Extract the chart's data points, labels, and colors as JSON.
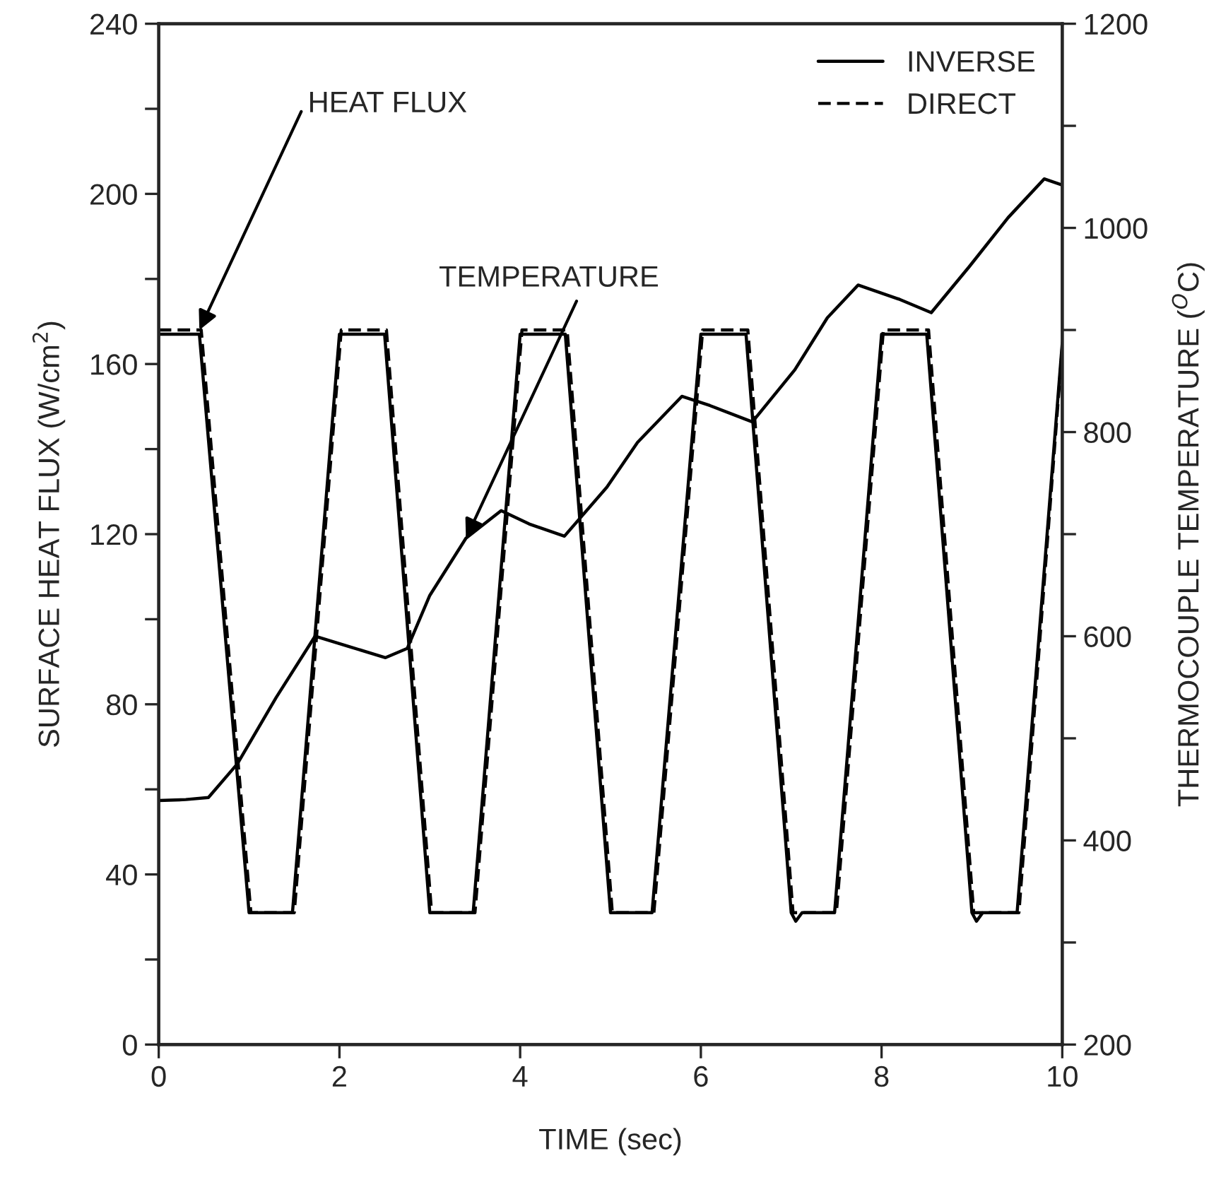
{
  "chart_data": {
    "type": "line",
    "xlabel": "TIME (sec)",
    "ylabel": "SURFACE HEAT FLUX (W/cm$^{2}$)",
    "y2label": "THERMOCOUPLE TEMPERATURE ($^{O}$C)",
    "xlim": [
      0,
      10
    ],
    "xticks": [
      0,
      2,
      4,
      6,
      8,
      10
    ],
    "ylim": [
      0,
      240
    ],
    "yticks": [
      0,
      {
        "value": 20,
        "label": null
      },
      40,
      {
        "value": 60,
        "label": null
      },
      80,
      {
        "value": 100,
        "label": null
      },
      120,
      {
        "value": 140,
        "label": null
      },
      160,
      {
        "value": 180,
        "label": null
      },
      200,
      {
        "value": 220,
        "label": null
      },
      240
    ],
    "y2lim": [
      200,
      1200
    ],
    "y2ticks": [
      200,
      {
        "value": 300,
        "label": null
      },
      400,
      {
        "value": 500,
        "label": null
      },
      600,
      {
        "value": 700,
        "label": null
      },
      800,
      {
        "value": 900,
        "label": null
      },
      1000,
      {
        "value": 1100,
        "label": null
      },
      1200
    ],
    "legend": "top right",
    "grid": false,
    "marker": "none",
    "series": [
      {
        "name": "INVERSE",
        "color": "#000000",
        "line_style": "solid",
        "x": [
          0,
          0.45,
          1.0,
          1.48,
          2.0,
          2.5,
          3.0,
          3.48,
          4.0,
          4.5,
          5.0,
          5.46,
          6.0,
          6.5,
          7.0,
          7.05,
          7.12,
          7.48,
          8.0,
          8.5,
          9.0,
          9.05,
          9.12,
          9.5,
          10
        ],
        "values": [
          167,
          167,
          31,
          31,
          167,
          167,
          31,
          31,
          167,
          167,
          31,
          31,
          167,
          167,
          31,
          29,
          31,
          31,
          167,
          167,
          31,
          29,
          31,
          31,
          165
        ]
      },
      {
        "name": "DIRECT",
        "color": "#000000",
        "line_style": "dashed",
        "x": [
          0,
          0.47,
          1.02,
          1.5,
          2.02,
          2.52,
          3.02,
          3.5,
          4.02,
          4.52,
          5.02,
          5.48,
          6.02,
          6.52,
          7.02,
          7.5,
          8.02,
          8.52,
          9.02,
          9.52,
          10
        ],
        "values": [
          168,
          168,
          31,
          31,
          168,
          168,
          31,
          31,
          168,
          168,
          31,
          31,
          168,
          168,
          31,
          31,
          168,
          168,
          31,
          31,
          164
        ]
      },
      {
        "color": "#000000",
        "line_style": "solid",
        "axis": "y2",
        "x": [
          0,
          0.3,
          0.55,
          0.87,
          1.3,
          1.73,
          2.1,
          2.51,
          2.75,
          3.0,
          3.4,
          3.79,
          4.1,
          4.49,
          4.96,
          5.3,
          5.79,
          6.1,
          6.57,
          7.04,
          7.4,
          7.74,
          8.2,
          8.55,
          8.97,
          9.4,
          9.8,
          10
        ],
        "values": [
          439,
          440,
          442,
          475,
          540,
          600,
          590,
          579,
          588,
          640,
          696,
          723,
          710,
          698,
          746,
          790,
          835,
          826,
          810,
          861,
          912,
          944,
          930,
          917,
          962,
          1010,
          1048,
          1042
        ]
      }
    ],
    "annotations": [
      {
        "text": "HEAT FLUX",
        "x": 0.45,
        "y": 168
      },
      {
        "text": "TEMPERATURE",
        "x": 3.4,
        "y": 119
      }
    ]
  }
}
